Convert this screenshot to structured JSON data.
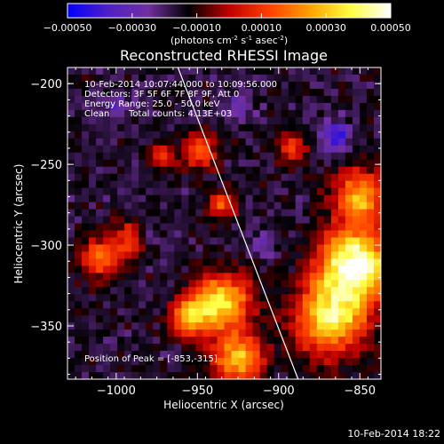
{
  "colorbar": {
    "ticks": [
      "-0.00050",
      "-0.00030",
      "-0.00010",
      "0.00010",
      "0.00030",
      "0.00050"
    ],
    "unit_label": "(photons cm",
    "unit_exp1": "-2",
    "unit_mid": " s",
    "unit_exp2": "-1",
    "unit_end": " asec",
    "unit_exp3": "-2",
    "unit_close": ")"
  },
  "chart_data": {
    "type": "heatmap",
    "title": "Reconstructed RHESSI Image",
    "xlabel": "Heliocentric X (arcsec)",
    "ylabel": "Heliocentric Y (arcsec)",
    "xlim": [
      -1030,
      -837
    ],
    "ylim": [
      -383,
      -190
    ],
    "x_ticks": [
      {
        "value": -1000,
        "label": "−1000"
      },
      {
        "value": -950,
        "label": "−950"
      },
      {
        "value": -900,
        "label": "−900"
      },
      {
        "value": -850,
        "label": "−850"
      }
    ],
    "y_ticks": [
      {
        "value": -200,
        "label": "−200"
      },
      {
        "value": -250,
        "label": "−250"
      },
      {
        "value": -300,
        "label": "−300"
      },
      {
        "value": -350,
        "label": "−350"
      }
    ],
    "color_range": [
      -0.0005,
      0.0005
    ],
    "colormap": [
      "#0000ff",
      "#5020c8",
      "#7030a0",
      "#000000",
      "#c00000",
      "#ff4000",
      "#ffa000",
      "#ffff40",
      "#ffffff"
    ],
    "limb_line": [
      [
        -962,
        -190
      ],
      [
        -888,
        -383
      ]
    ],
    "peak_position": [
      -853,
      -315
    ],
    "hotspots": [
      {
        "x": -853,
        "y": -312,
        "r": 22,
        "v": 0.0005
      },
      {
        "x": -868,
        "y": -345,
        "r": 22,
        "v": 0.00036
      },
      {
        "x": -850,
        "y": -270,
        "r": 16,
        "v": 0.00026
      },
      {
        "x": -935,
        "y": -335,
        "r": 18,
        "v": 0.00034
      },
      {
        "x": -925,
        "y": -370,
        "r": 15,
        "v": 0.0003
      },
      {
        "x": -955,
        "y": -345,
        "r": 12,
        "v": 0.0002
      },
      {
        "x": -1008,
        "y": -308,
        "r": 13,
        "v": 0.00018
      },
      {
        "x": -990,
        "y": -295,
        "r": 10,
        "v": 0.00012
      },
      {
        "x": -948,
        "y": -242,
        "r": 11,
        "v": 0.00014
      },
      {
        "x": -935,
        "y": -275,
        "r": 9,
        "v": 0.00012
      },
      {
        "x": -892,
        "y": -240,
        "r": 9,
        "v": 0.0001
      },
      {
        "x": -972,
        "y": -245,
        "r": 8,
        "v": 0.0001
      }
    ],
    "coldspots": [
      {
        "x": -865,
        "y": -232,
        "r": 9,
        "v": -0.0004
      },
      {
        "x": -982,
        "y": -294,
        "r": 6,
        "v": -0.00036
      },
      {
        "x": -910,
        "y": -300,
        "r": 7,
        "v": -0.0003
      },
      {
        "x": -1000,
        "y": -215,
        "r": 8,
        "v": -0.0003
      },
      {
        "x": -925,
        "y": -215,
        "r": 8,
        "v": -0.00028
      }
    ],
    "annotations": {
      "time_range": "10-Feb-2014 10:07:44.000 to 10:09:56.000",
      "detectors": "Detectors: 3F 5F 6F 7F 8F 9F, Att 0",
      "energy_range": "Energy Range: 25.0 - 50.0 keV",
      "clean": "Clean",
      "total_counts": "Total counts: 4.13E+03",
      "peak_text": "Position of Peak = [-853,-315]"
    }
  },
  "footer": {
    "timestamp": "10-Feb-2014 18:22"
  }
}
